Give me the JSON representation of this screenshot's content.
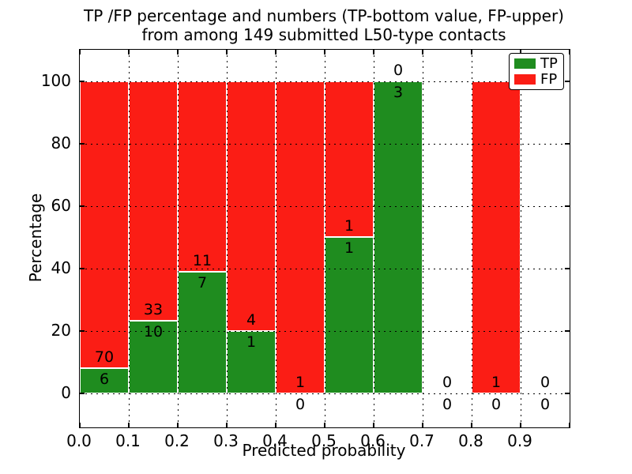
{
  "title": {
    "line1": "TP /FP percentage and numbers (TP-bottom value, FP-upper)",
    "line2": "from among 149 submitted L50-type contacts"
  },
  "chart_data": {
    "type": "bar",
    "stacked": true,
    "title": "TP /FP percentage and numbers (TP-bottom value, FP-upper)\nfrom among 149 submitted L50-type contacts",
    "xlabel": "Predicted probability",
    "ylabel": "Percentage",
    "xlim": [
      0.0,
      1.0
    ],
    "ylim": [
      -11,
      110
    ],
    "grid": "dotted",
    "legend_position": "upper right",
    "bin_width": 0.1,
    "bin_starts": [
      0.0,
      0.1,
      0.2,
      0.3,
      0.4,
      0.5,
      0.6,
      0.7,
      0.8,
      0.9
    ],
    "xtick_labels": [
      "0.0",
      "0.1",
      "0.2",
      "0.3",
      "0.4",
      "0.5",
      "0.6",
      "0.7",
      "0.8",
      "0.9"
    ],
    "ytick_values": [
      0,
      20,
      40,
      60,
      80,
      100
    ],
    "ytick_labels": [
      "0",
      "20",
      "40",
      "60",
      "80",
      "100"
    ],
    "annotation_note": "FP count shown above TP/FP boundary, TP count shown below it",
    "series": [
      {
        "name": "TP",
        "color": "#1f8c1f",
        "counts": [
          6,
          10,
          7,
          1,
          0,
          1,
          3,
          0,
          0,
          0
        ],
        "percent": [
          7.9,
          23.3,
          38.9,
          20.0,
          0.0,
          50.0,
          100.0,
          0.0,
          0.0,
          0.0
        ]
      },
      {
        "name": "FP",
        "color": "#fb1d15",
        "counts": [
          70,
          33,
          11,
          4,
          1,
          1,
          0,
          0,
          1,
          0
        ],
        "percent": [
          92.1,
          76.7,
          61.1,
          80.0,
          100.0,
          50.0,
          0.0,
          0.0,
          100.0,
          0.0
        ]
      }
    ]
  }
}
